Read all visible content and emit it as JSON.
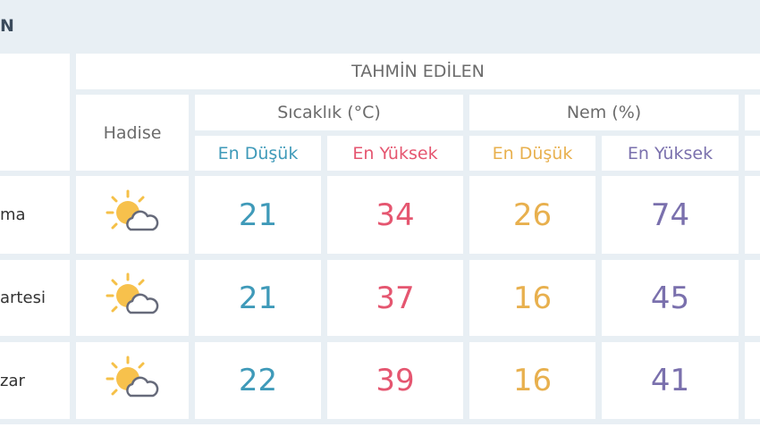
{
  "title": "N",
  "header": {
    "group": "TAHMİN EDİLEN",
    "hadise": "Hadise",
    "temperature": "Sıcaklık (°C)",
    "humidity": "Nem (%)",
    "low": "En Düşük",
    "high": "En Yüksek"
  },
  "colors": {
    "temp_low": "#3f9ab9",
    "temp_high": "#e55670",
    "hum_low": "#e8b04e",
    "hum_high": "#7a70ad"
  },
  "rows": [
    {
      "day": "ma",
      "icon": "partly-cloudy-icon",
      "temp_low": "21",
      "temp_high": "34",
      "hum_low": "26",
      "hum_high": "74"
    },
    {
      "day": "artesi",
      "icon": "partly-cloudy-icon",
      "temp_low": "21",
      "temp_high": "37",
      "hum_low": "16",
      "hum_high": "45"
    },
    {
      "day": "zar",
      "icon": "partly-cloudy-icon",
      "temp_low": "22",
      "temp_high": "39",
      "hum_low": "16",
      "hum_high": "41"
    }
  ]
}
